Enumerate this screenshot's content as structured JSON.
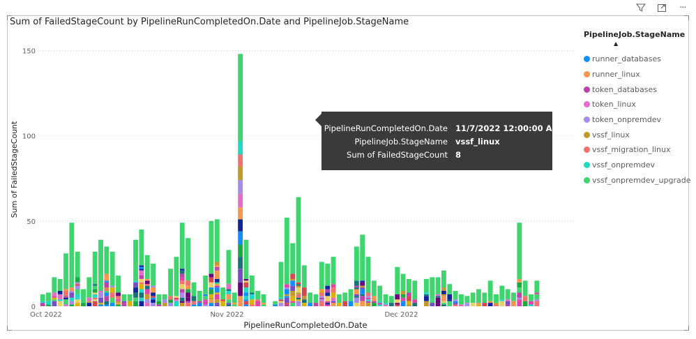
{
  "visual": {
    "title": "Sum of FailedStageCount by PipelineRunCompletedOn.Date and PipelineJob.StageName",
    "toolbar": [
      {
        "name": "filter-icon"
      },
      {
        "name": "focus-mode-icon"
      },
      {
        "name": "more-options-icon",
        "label": "···"
      }
    ]
  },
  "legend": {
    "title": "PipelineJob.StageName",
    "sort_indicator": "▲",
    "items": [
      {
        "label": "runner_databases",
        "color": "#118DFF"
      },
      {
        "label": "runner_linux",
        "color": "#F7964C"
      },
      {
        "label": "token_databases",
        "color": "#B845A7"
      },
      {
        "label": "token_linux",
        "color": "#E66CC8"
      },
      {
        "label": "token_onpremdev",
        "color": "#A78BE8"
      },
      {
        "label": "vssf_linux",
        "color": "#C2992D"
      },
      {
        "label": "vssf_migration_linux",
        "color": "#F0716D"
      },
      {
        "label": "vssf_onpremdev",
        "color": "#20D9C5"
      },
      {
        "label": "vssf_onpremdev_upgrade",
        "color": "#3FD56E"
      }
    ]
  },
  "tooltip": {
    "rows": [
      {
        "key": "PipelineRunCompletedOn.Date",
        "value": "11/7/2022 12:00:00 AM"
      },
      {
        "key": "PipelineJob.StageName",
        "value": "vssf_linux"
      },
      {
        "key": "Sum of FailedStageCount",
        "value": "8"
      }
    ]
  },
  "chart_data": {
    "type": "bar",
    "stacked": true,
    "title": "Sum of FailedStageCount by PipelineRunCompletedOn.Date and PipelineJob.StageName",
    "xlabel": "PipelineRunCompletedOn.Date",
    "ylabel": "Sum of FailedStageCount",
    "ylim": [
      0,
      160
    ],
    "yticks": [
      0,
      50,
      100,
      150
    ],
    "xticks": [
      {
        "label": "Oct 2022",
        "index": 0
      },
      {
        "label": "Nov 2022",
        "index": 31
      },
      {
        "label": "Dec 2022",
        "index": 61
      }
    ],
    "grid": true,
    "legend_position": "right",
    "extra_segment_colors": [
      "#12239E",
      "#E044A7",
      "#744EC2",
      "#D9B300",
      "#D64550",
      "#197278",
      "#1AAB40",
      "#6B007B",
      "#E8D166"
    ],
    "dates": [
      "10/1",
      "10/2",
      "10/3",
      "10/4",
      "10/5",
      "10/6",
      "10/7",
      "10/8",
      "10/9",
      "10/10",
      "10/11",
      "10/12",
      "10/13",
      "10/14",
      "10/15",
      "10/16",
      "10/17",
      "10/18",
      "10/19",
      "10/20",
      "10/21",
      "10/22",
      "10/23",
      "10/24",
      "10/25",
      "10/26",
      "10/27",
      "10/28",
      "10/29",
      "10/30",
      "10/31",
      "11/1",
      "11/2",
      "11/3",
      "11/4",
      "11/5",
      "11/6",
      "11/7",
      "11/8",
      "11/9",
      "11/10",
      "11/11",
      "11/12",
      "11/13",
      "11/14",
      "11/15",
      "11/16",
      "11/17",
      "11/18",
      "11/19",
      "11/20",
      "11/21",
      "11/22",
      "11/23",
      "11/24",
      "11/25",
      "11/26",
      "11/27",
      "11/28",
      "11/29",
      "11/30",
      "12/1",
      "12/2",
      "12/3",
      "12/4",
      "12/5",
      "12/6",
      "12/7",
      "12/8",
      "12/9",
      "12/10",
      "12/11",
      "12/12",
      "12/13",
      "12/14",
      "12/15",
      "12/16",
      "12/17",
      "12/18",
      "12/19",
      "12/20",
      "12/21",
      "12/22",
      "12/23",
      "12/24",
      "12/25",
      "12/26",
      "12/27",
      "12/28",
      "12/29",
      "12/30",
      "12/31"
    ],
    "totals": [
      7,
      8,
      17,
      16,
      31,
      49,
      32,
      10,
      17,
      32,
      39,
      35,
      32,
      18,
      7,
      7,
      39,
      45,
      30,
      25,
      7,
      7,
      22,
      29,
      49,
      40,
      14,
      9,
      18,
      50,
      51,
      11,
      33,
      8,
      148,
      39,
      18,
      9,
      7,
      0,
      3,
      26,
      52,
      37,
      64,
      24,
      8,
      7,
      26,
      25,
      29,
      7,
      8,
      10,
      35,
      42,
      29,
      15,
      12,
      7,
      6,
      23,
      19,
      16,
      15,
      0,
      16,
      17,
      17,
      21,
      13,
      9,
      7,
      6,
      8,
      10,
      8,
      15,
      7,
      12,
      10,
      8,
      49,
      15,
      7,
      15,
      0,
      0,
      0,
      0,
      0,
      0
    ],
    "segments": [
      [],
      [],
      [],
      [],
      [],
      [],
      [],
      [],
      [],
      [],
      [],
      [],
      [],
      [],
      [],
      [],
      [],
      [],
      [],
      [],
      [],
      [],
      [],
      [],
      [],
      [],
      [],
      [],
      [],
      [],
      [],
      [],
      [],
      [],
      [
        [
          "#F7964C",
          6
        ],
        [
          "#6B007B",
          8
        ],
        [
          "#744EC2",
          8
        ],
        [
          "#197278",
          7
        ],
        [
          "#1AAB40",
          7
        ],
        [
          "#118DFF",
          8
        ],
        [
          "#12239E",
          7
        ],
        [
          "#F7964C",
          7
        ],
        [
          "#E66CC8",
          8
        ],
        [
          "#A78BE8",
          8
        ],
        [
          "#C2992D",
          8
        ],
        [
          "#F0716D",
          7
        ],
        [
          "#20D9C5",
          8
        ],
        [
          "#3FD56E",
          51
        ]
      ],
      [],
      [],
      [],
      [],
      [],
      [],
      [],
      [],
      [],
      [],
      [],
      [],
      [],
      [],
      [],
      [],
      [],
      [],
      [],
      [],
      [],
      [],
      [],
      [],
      [],
      [],
      [],
      [],
      [],
      [],
      [],
      [],
      [],
      [],
      [],
      [],
      [],
      [],
      [],
      [],
      [],
      [],
      [],
      [],
      [],
      [],
      [],
      [],
      [],
      [],
      [],
      [],
      [],
      [],
      [],
      [],
      [],
      []
    ]
  }
}
